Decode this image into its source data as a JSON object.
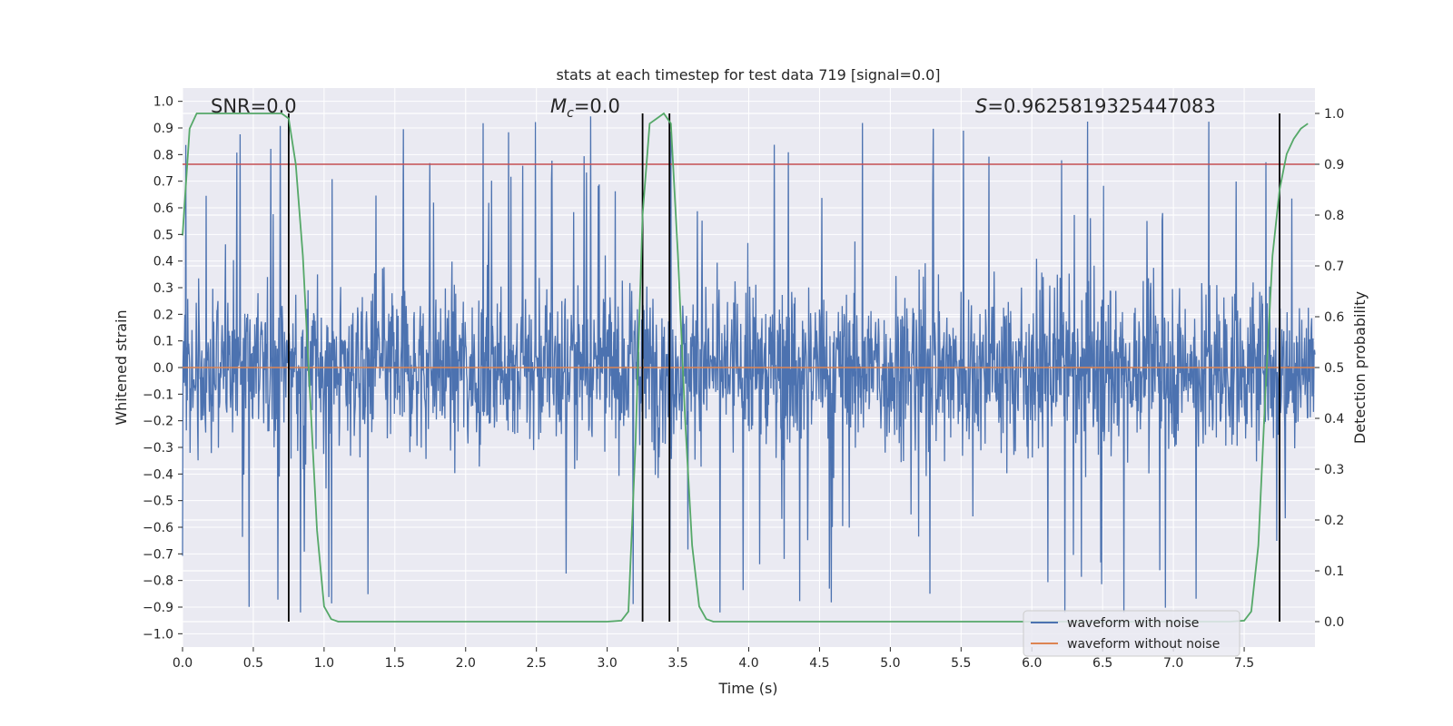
{
  "chart_data": {
    "type": "line",
    "title": "stats at each timestep for test data 719 [signal=0.0]",
    "xlabel": "Time (s)",
    "ylabel": "Whitened strain",
    "y2label": "Detection probability",
    "xlim": [
      0.0,
      8.0
    ],
    "ylim": [
      -1.05,
      1.05
    ],
    "y2lim": [
      -0.05,
      1.05
    ],
    "x_ticks": [
      0.0,
      0.5,
      1.0,
      1.5,
      2.0,
      2.5,
      3.0,
      3.5,
      4.0,
      4.5,
      5.0,
      5.5,
      6.0,
      6.5,
      7.0,
      7.5
    ],
    "y_ticks": [
      -1.0,
      -0.9,
      -0.8,
      -0.7,
      -0.6,
      -0.5,
      -0.4,
      -0.3,
      -0.2,
      -0.1,
      0.0,
      0.1,
      0.2,
      0.3,
      0.4,
      0.5,
      0.6,
      0.7,
      0.8,
      0.9,
      1.0
    ],
    "y2_ticks": [
      0.0,
      0.1,
      0.2,
      0.3,
      0.4,
      0.5,
      0.6,
      0.7,
      0.8,
      0.9,
      1.0
    ],
    "grid": true,
    "series": [
      {
        "name": "waveform with noise",
        "color": "#4c72b0",
        "axis": "left",
        "description_note": "dense noisy strain, approx within [-0.92, 1.0]",
        "amplitude_envelope": [
          -0.92,
          1.0
        ]
      },
      {
        "name": "waveform without noise",
        "color": "#dd8452",
        "axis": "left",
        "x": [
          0.0,
          8.0
        ],
        "y": [
          0.0,
          0.0
        ]
      },
      {
        "name": "detection probability",
        "color": "#55a868",
        "axis": "right",
        "x": [
          0.0,
          0.05,
          0.1,
          0.15,
          0.2,
          0.3,
          0.4,
          0.5,
          0.6,
          0.7,
          0.75,
          0.8,
          0.85,
          0.9,
          0.95,
          1.0,
          1.05,
          1.1,
          1.2,
          1.5,
          2.0,
          2.5,
          3.0,
          3.1,
          3.15,
          3.2,
          3.25,
          3.3,
          3.35,
          3.4,
          3.45,
          3.5,
          3.55,
          3.6,
          3.65,
          3.7,
          3.75,
          3.8,
          4.0,
          5.0,
          6.0,
          7.0,
          7.4,
          7.5,
          7.55,
          7.6,
          7.65,
          7.7,
          7.75,
          7.8,
          7.85,
          7.9,
          7.95
        ],
        "y": [
          0.76,
          0.97,
          1.0,
          1.0,
          1.0,
          1.0,
          1.0,
          1.0,
          1.0,
          1.0,
          0.99,
          0.9,
          0.72,
          0.45,
          0.18,
          0.03,
          0.005,
          0.0,
          0.0,
          0.0,
          0.0,
          0.0,
          0.0,
          0.002,
          0.02,
          0.35,
          0.8,
          0.98,
          0.99,
          1.0,
          0.98,
          0.72,
          0.4,
          0.15,
          0.03,
          0.005,
          0.0,
          0.0,
          0.0,
          0.0,
          0.0,
          0.0,
          0.0,
          0.002,
          0.02,
          0.15,
          0.45,
          0.72,
          0.85,
          0.92,
          0.95,
          0.97,
          0.98
        ]
      }
    ],
    "threshold": {
      "color": "#c44e52",
      "axis": "right",
      "value": 0.9
    },
    "vertical_lines": [
      0.75,
      3.25,
      3.44,
      7.75
    ],
    "vertical_line_range": [
      0.0,
      1.0
    ],
    "annotations": [
      {
        "x": 0.19,
        "y": 1.0,
        "text": "SNR=0.0",
        "kind": "plain"
      },
      {
        "x": 2.6,
        "y": 1.0,
        "text": "=0.0",
        "kind": "mc"
      },
      {
        "x": 5.6,
        "y": 1.0,
        "text": "=0.9625819325447083",
        "kind": "s"
      }
    ],
    "annotation_symbols": {
      "mc_base": "M",
      "mc_sub": "c",
      "s": "S"
    },
    "legend": {
      "placement": "lower-right",
      "entries": [
        "waveform with noise",
        "waveform without noise"
      ]
    },
    "colors": {
      "plot_bg": "#eaeaf2",
      "grid": "#ffffff",
      "noise": "#4c72b0",
      "clean": "#dd8452",
      "prob": "#55a868",
      "threshold": "#c44e52",
      "vlines": "#000000",
      "text": "#262626"
    }
  }
}
